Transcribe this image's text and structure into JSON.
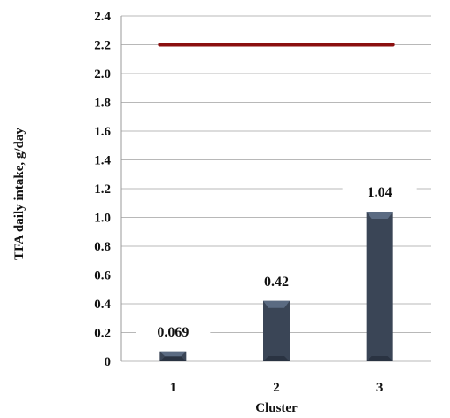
{
  "chart_data": {
    "type": "bar",
    "categories": [
      "1",
      "2",
      "3"
    ],
    "values": [
      0.069,
      0.42,
      1.04
    ],
    "data_labels": [
      "0.069",
      "0.42",
      "1.04"
    ],
    "yticks": [
      "0",
      "0.2",
      "0.4",
      "0.6",
      "0.8",
      "1.0",
      "1.2",
      "1.4",
      "1.6",
      "1.8",
      "2.0",
      "2.2",
      "2.4"
    ],
    "xlabel": "Cluster",
    "ylabel": "TFA daily intake, g/day",
    "ylim": [
      0,
      2.4
    ],
    "reference_line": {
      "value": 2.2,
      "x_from_category": "1",
      "x_to_category": "3"
    },
    "grid": true,
    "legend": "none",
    "colors": {
      "bar": "#3a4556",
      "bar_highlight": "#5b6b82",
      "reference_line": "#8b0f0f",
      "grid": "#b8b8b8",
      "axis": "#9a9a9a"
    }
  }
}
